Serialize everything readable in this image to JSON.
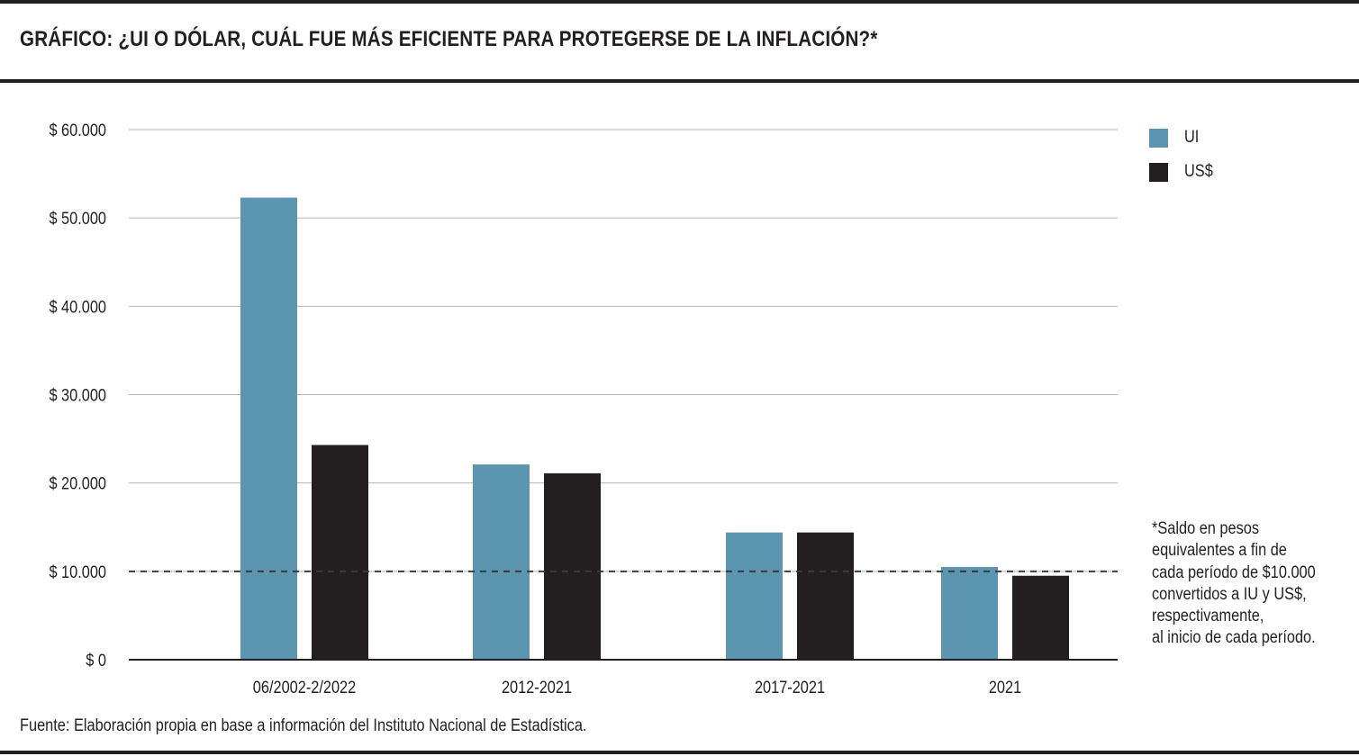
{
  "title": "GRÁFICO: ¿UI O DÓLAR, CUÁL FUE MÁS EFICIENTE PARA PROTEGERSE DE LA INFLACIÓN?*",
  "colors": {
    "ui": "#5b95b0",
    "usd": "#231f20",
    "grid": "#b3b3b3",
    "axis": "#231f20"
  },
  "chart_data": {
    "type": "bar",
    "categories": [
      "06/2002-2/2022",
      "2012-2021",
      "2017-2021",
      "2021"
    ],
    "series": [
      {
        "name": "UI",
        "color": "#5b95b0",
        "values": [
          52300,
          22100,
          14400,
          10500
        ]
      },
      {
        "name": "US$",
        "color": "#231f20",
        "values": [
          24300,
          21100,
          14400,
          9500
        ]
      }
    ],
    "ylim": [
      0,
      60000
    ],
    "yticks": [
      {
        "value": 0,
        "label": "$ 0"
      },
      {
        "value": 10000,
        "label": "$ 10.000"
      },
      {
        "value": 20000,
        "label": "$ 20.000"
      },
      {
        "value": 30000,
        "label": "$ 30.000"
      },
      {
        "value": 40000,
        "label": "$ 40.000"
      },
      {
        "value": 50000,
        "label": "$ 50.000"
      },
      {
        "value": 60000,
        "label": "$ 60.000"
      }
    ],
    "reference_line": {
      "value": 10000,
      "style": "dashed"
    },
    "grid": true,
    "legend": "top-right"
  },
  "footnote_lines": [
    "*Saldo en pesos",
    "equivalentes a fin de",
    "cada período de $10.000",
    "convertidos a IU y US$,",
    "respectivamente,",
    "al inicio de cada período."
  ],
  "source": "Fuente: Elaboración propia en base a información del Instituto Nacional de Estadística."
}
